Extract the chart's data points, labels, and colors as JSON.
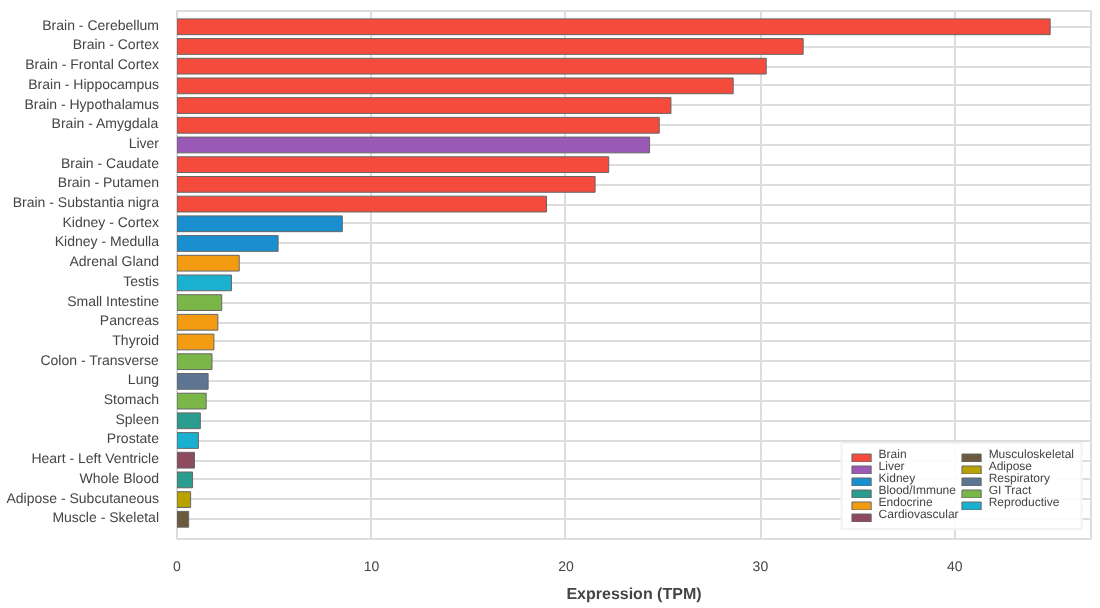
{
  "chart_data": {
    "type": "bar",
    "orientation": "horizontal",
    "xlabel": "Expression (TPM)",
    "categories": [
      "Brain - Cerebellum",
      "Brain - Cortex",
      "Brain - Frontal Cortex",
      "Brain - Hippocampus",
      "Brain - Hypothalamus",
      "Brain - Amygdala",
      "Liver",
      "Brain - Caudate",
      "Brain - Putamen",
      "Brain - Substantia nigra",
      "Kidney - Cortex",
      "Kidney - Medulla",
      "Adrenal Gland",
      "Testis",
      "Small Intestine",
      "Pancreas",
      "Thyroid",
      "Colon - Transverse",
      "Lung",
      "Stomach",
      "Spleen",
      "Prostate",
      "Heart - Left Ventricle",
      "Whole Blood",
      "Adipose - Subcutaneous",
      "Muscle - Skeletal"
    ],
    "series": [
      {
        "name": "Brain",
        "color": "#f44b3c",
        "values": [
          44.9,
          32.2,
          30.3,
          28.6,
          25.4,
          24.8,
          null,
          22.2,
          21.5,
          19.0,
          null,
          null,
          null,
          null,
          null,
          null,
          null,
          null,
          null,
          null,
          null,
          null,
          null,
          null,
          null,
          null
        ]
      },
      {
        "name": "Liver",
        "color": "#9b59b6",
        "values": [
          null,
          null,
          null,
          null,
          null,
          null,
          24.3,
          null,
          null,
          null,
          null,
          null,
          null,
          null,
          null,
          null,
          null,
          null,
          null,
          null,
          null,
          null,
          null,
          null,
          null,
          null
        ]
      },
      {
        "name": "Kidney",
        "color": "#1a8fd0",
        "values": [
          null,
          null,
          null,
          null,
          null,
          null,
          null,
          null,
          null,
          null,
          8.5,
          5.2,
          null,
          null,
          null,
          null,
          null,
          null,
          null,
          null,
          null,
          null,
          null,
          null,
          null,
          null
        ]
      },
      {
        "name": "Blood/Immune",
        "color": "#2a9d8f",
        "values": [
          null,
          null,
          null,
          null,
          null,
          null,
          null,
          null,
          null,
          null,
          null,
          null,
          null,
          null,
          null,
          null,
          null,
          null,
          null,
          null,
          1.2,
          null,
          null,
          0.8,
          null,
          null
        ]
      },
      {
        "name": "Endocrine",
        "color": "#f39c12",
        "values": [
          null,
          null,
          null,
          null,
          null,
          null,
          null,
          null,
          null,
          null,
          null,
          null,
          3.2,
          null,
          null,
          2.1,
          1.9,
          null,
          null,
          null,
          null,
          null,
          null,
          null,
          null,
          null
        ]
      },
      {
        "name": "Cardiovascular",
        "color": "#8e4a5e",
        "values": [
          null,
          null,
          null,
          null,
          null,
          null,
          null,
          null,
          null,
          null,
          null,
          null,
          null,
          null,
          null,
          null,
          null,
          null,
          null,
          null,
          null,
          null,
          0.9,
          null,
          null,
          null
        ]
      },
      {
        "name": "Musculoskeletal",
        "color": "#6b5a3e",
        "values": [
          null,
          null,
          null,
          null,
          null,
          null,
          null,
          null,
          null,
          null,
          null,
          null,
          null,
          null,
          null,
          null,
          null,
          null,
          null,
          null,
          null,
          null,
          null,
          null,
          null,
          0.6
        ]
      },
      {
        "name": "Adipose",
        "color": "#b8a200",
        "values": [
          null,
          null,
          null,
          null,
          null,
          null,
          null,
          null,
          null,
          null,
          null,
          null,
          null,
          null,
          null,
          null,
          null,
          null,
          null,
          null,
          null,
          null,
          null,
          null,
          0.7,
          null
        ]
      },
      {
        "name": "Respiratory",
        "color": "#5d7592",
        "values": [
          null,
          null,
          null,
          null,
          null,
          null,
          null,
          null,
          null,
          null,
          null,
          null,
          null,
          null,
          null,
          null,
          null,
          null,
          1.6,
          null,
          null,
          null,
          null,
          null,
          null,
          null
        ]
      },
      {
        "name": "GI Tract",
        "color": "#7ab648",
        "values": [
          null,
          null,
          null,
          null,
          null,
          null,
          null,
          null,
          null,
          null,
          null,
          null,
          null,
          null,
          2.3,
          null,
          null,
          1.8,
          null,
          1.5,
          null,
          null,
          null,
          null,
          null,
          null
        ]
      },
      {
        "name": "Reproductive",
        "color": "#1ab0d0",
        "values": [
          null,
          null,
          null,
          null,
          null,
          null,
          null,
          null,
          null,
          null,
          null,
          null,
          null,
          2.8,
          null,
          null,
          null,
          null,
          null,
          null,
          null,
          1.1,
          null,
          null,
          null,
          null
        ]
      }
    ],
    "xlim": [
      0,
      47
    ],
    "xticks": [
      0,
      10,
      20,
      30,
      40
    ],
    "grid": true,
    "legend": "bottom right"
  }
}
